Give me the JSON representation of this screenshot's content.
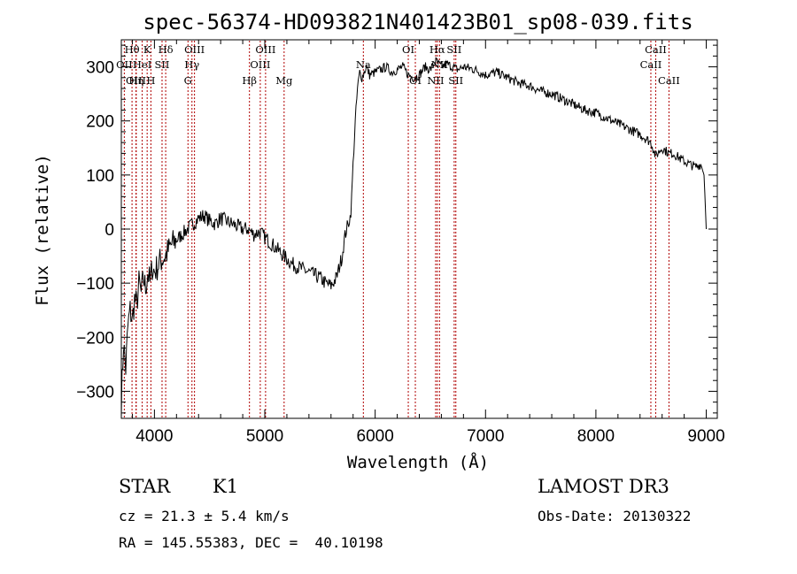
{
  "chart_data": {
    "type": "line",
    "title": "spec-56374-HD093821N401423B01_sp08-039.fits",
    "xlabel": "Wavelength (Å)",
    "ylabel": "Flux (relative)",
    "xlim": [
      3700,
      9100
    ],
    "ylim": [
      -350,
      350
    ],
    "xticks": [
      4000,
      5000,
      6000,
      7000,
      8000,
      9000
    ],
    "yticks": [
      -300,
      -200,
      -100,
      0,
      100,
      200,
      300
    ],
    "xtick_labels": [
      "4000",
      "5000",
      "6000",
      "7000",
      "8000",
      "9000"
    ],
    "ytick_labels": [
      "−300",
      "−200",
      "−100",
      "0",
      "100",
      "200",
      "300"
    ],
    "series": [
      {
        "name": "spectrum",
        "x": [
          3700,
          3720,
          3740,
          3760,
          3780,
          3800,
          3820,
          3840,
          3860,
          3880,
          3900,
          3920,
          3940,
          3960,
          3980,
          4000,
          4050,
          4100,
          4150,
          4200,
          4250,
          4300,
          4350,
          4400,
          4450,
          4500,
          4550,
          4600,
          4650,
          4700,
          4750,
          4800,
          4850,
          4900,
          4950,
          5000,
          5050,
          5100,
          5150,
          5200,
          5250,
          5300,
          5350,
          5400,
          5450,
          5500,
          5550,
          5600,
          5650,
          5700,
          5720,
          5740,
          5760,
          5780,
          5800,
          5820,
          5840,
          5860,
          5880,
          5900,
          5920,
          5950,
          6000,
          6050,
          6100,
          6150,
          6200,
          6250,
          6300,
          6350,
          6400,
          6450,
          6500,
          6550,
          6600,
          6650,
          6700,
          6750,
          6800,
          6900,
          7000,
          7100,
          7200,
          7300,
          7400,
          7500,
          7600,
          7700,
          7800,
          7900,
          8000,
          8100,
          8200,
          8300,
          8400,
          8500,
          8540,
          8600,
          8662,
          8700,
          8800,
          8900,
          8950,
          8980,
          9000
        ],
        "y": [
          -320,
          -210,
          -260,
          -180,
          -150,
          -170,
          -130,
          -140,
          -100,
          -120,
          -90,
          -110,
          -80,
          -100,
          -70,
          -80,
          -60,
          -50,
          -30,
          -20,
          -10,
          0,
          10,
          20,
          25,
          15,
          10,
          20,
          15,
          10,
          5,
          0,
          0,
          -10,
          -5,
          -15,
          -25,
          -35,
          -45,
          -55,
          -65,
          -70,
          -75,
          -80,
          -85,
          -90,
          -100,
          -105,
          -90,
          -50,
          -20,
          0,
          10,
          30,
          120,
          200,
          260,
          290,
          280,
          290,
          300,
          285,
          290,
          295,
          300,
          290,
          295,
          300,
          285,
          280,
          285,
          300,
          295,
          310,
          300,
          305,
          300,
          295,
          300,
          295,
          285,
          290,
          280,
          270,
          265,
          255,
          250,
          240,
          230,
          220,
          215,
          205,
          195,
          185,
          175,
          160,
          135,
          150,
          140,
          140,
          125,
          115,
          120,
          100,
          0
        ]
      }
    ],
    "spectral_lines": [
      {
        "label": "Hθ",
        "x": 3797,
        "row": 1
      },
      {
        "label": "K",
        "x": 3934,
        "row": 1
      },
      {
        "label": "Hδ",
        "x": 4102,
        "row": 1
      },
      {
        "label": "OIII",
        "x": 4363,
        "row": 1
      },
      {
        "label": "OIII",
        "x": 5007,
        "row": 1
      },
      {
        "label": "OI",
        "x": 6300,
        "row": 1
      },
      {
        "label": "Hα",
        "x": 6563,
        "row": 1
      },
      {
        "label": "SII",
        "x": 6716,
        "row": 1
      },
      {
        "label": "CaII",
        "x": 8542,
        "row": 1
      },
      {
        "label": "OII",
        "x": 3727,
        "row": 2
      },
      {
        "label": "HeI",
        "x": 3889,
        "row": 2
      },
      {
        "label": "SII",
        "x": 4069,
        "row": 2
      },
      {
        "label": "Hγ",
        "x": 4340,
        "row": 2
      },
      {
        "label": "OIII",
        "x": 4959,
        "row": 2
      },
      {
        "label": "Na",
        "x": 5893,
        "row": 2
      },
      {
        "label": "NII",
        "x": 6583,
        "row": 2
      },
      {
        "label": "CaII",
        "x": 8498,
        "row": 2
      },
      {
        "label": "OIII",
        "x": 3833,
        "row": 3
      },
      {
        "label": "Hη",
        "x": 3835,
        "row": 3
      },
      {
        "label": "H",
        "x": 3968,
        "row": 3
      },
      {
        "label": "G",
        "x": 4304,
        "row": 3
      },
      {
        "label": "Hβ",
        "x": 4861,
        "row": 3
      },
      {
        "label": "Mg",
        "x": 5175,
        "row": 3
      },
      {
        "label": "OI",
        "x": 6364,
        "row": 3
      },
      {
        "label": "NII",
        "x": 6548,
        "row": 3
      },
      {
        "label": "SII",
        "x": 6731,
        "row": 3
      },
      {
        "label": "CaII",
        "x": 8662,
        "row": 3
      }
    ]
  },
  "info": {
    "class_label": "STAR",
    "subclass": "K1",
    "cz": "cz = 21.3 ± 5.4 km/s",
    "coords": "RA = 145.55383, DEC =  40.10198",
    "survey": "LAMOST DR3",
    "obs_date": "Obs-Date: 20130322"
  }
}
